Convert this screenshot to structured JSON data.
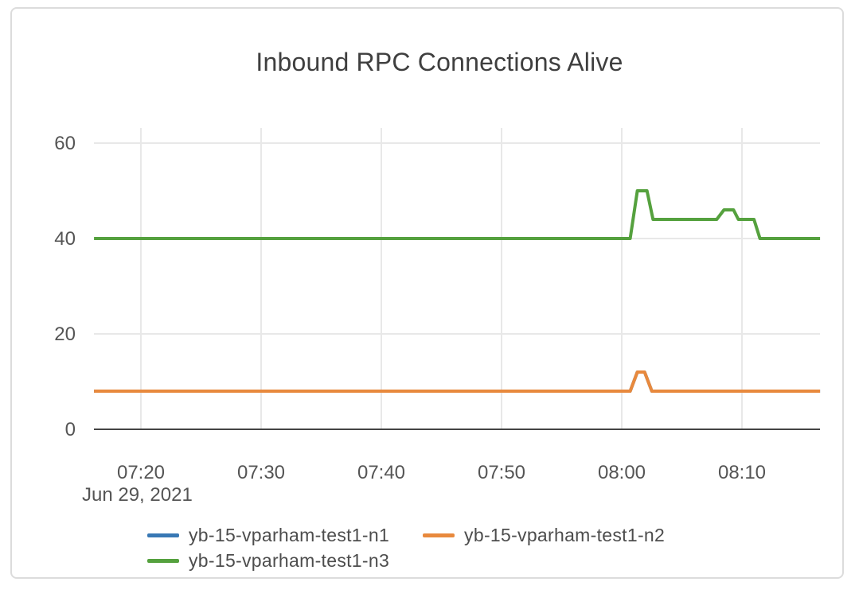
{
  "chart_data": {
    "type": "line",
    "title": "Inbound RPC Connections Alive",
    "x_axis": {
      "date_label": "Jun 29, 2021",
      "tick_labels": [
        "07:20",
        "07:30",
        "07:40",
        "07:50",
        "08:00",
        "08:10"
      ],
      "tick_minutes_rel_0800": [
        -40,
        -30,
        -20,
        -10,
        0,
        10
      ],
      "domain_minutes_rel_0800": [
        -43.9,
        16.5
      ]
    },
    "y_axis": {
      "tick_values": [
        0,
        20,
        40,
        60
      ],
      "range": [
        0,
        63
      ]
    },
    "grid": true,
    "legend_position": "bottom",
    "series": [
      {
        "name": "yb-15-vparham-test1-n1",
        "color": "#3878b4",
        "points_t_v": [
          [
            -43.9,
            8
          ],
          [
            0.7,
            8
          ],
          [
            1.3,
            12
          ],
          [
            1.9,
            12
          ],
          [
            2.5,
            8
          ],
          [
            16.5,
            8
          ]
        ]
      },
      {
        "name": "yb-15-vparham-test1-n2",
        "color": "#e8893d",
        "points_t_v": [
          [
            -43.9,
            8
          ],
          [
            0.7,
            8
          ],
          [
            1.3,
            12
          ],
          [
            1.9,
            12
          ],
          [
            2.5,
            8
          ],
          [
            16.5,
            8
          ]
        ]
      },
      {
        "name": "yb-15-vparham-test1-n3",
        "color": "#55a13e",
        "points_t_v": [
          [
            -43.9,
            40
          ],
          [
            0.7,
            40
          ],
          [
            1.3,
            50
          ],
          [
            2.1,
            50
          ],
          [
            2.6,
            44
          ],
          [
            7.9,
            44
          ],
          [
            8.5,
            46
          ],
          [
            9.3,
            46
          ],
          [
            9.7,
            44
          ],
          [
            11.0,
            44
          ],
          [
            11.5,
            40
          ],
          [
            16.5,
            40
          ]
        ]
      }
    ]
  },
  "colors": {
    "grid": "#e8e8e8",
    "axis": "#444444",
    "tick_text": "#555555",
    "title_text": "#3f3f3f",
    "card_border": "#dcdcdc"
  }
}
